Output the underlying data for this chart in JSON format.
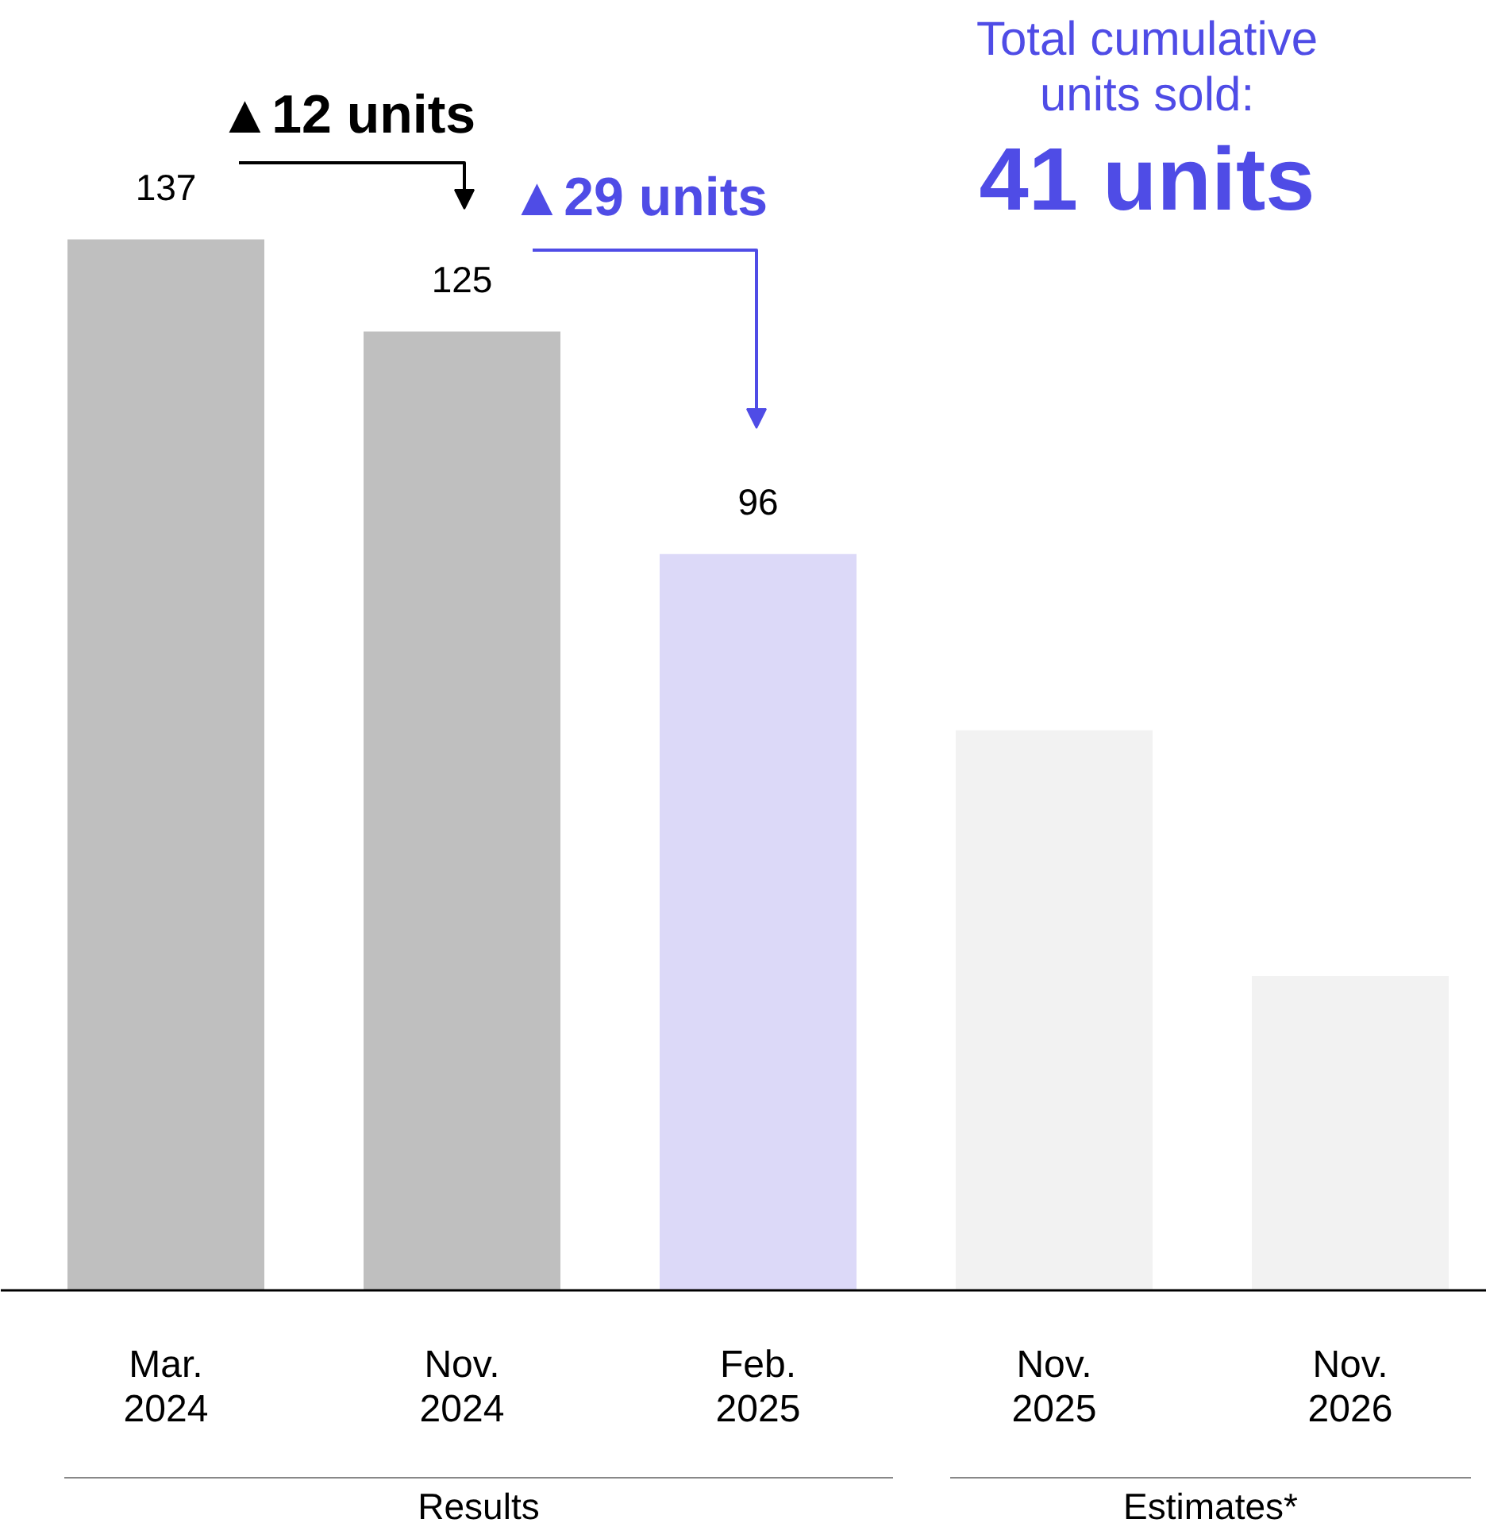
{
  "chart_data": {
    "type": "bar",
    "categories": [
      "Mar.\n2024",
      "Nov.\n2024",
      "Feb.\n2025",
      "Nov.\n2025",
      "Nov.\n2026"
    ],
    "values": [
      137,
      125,
      96,
      73,
      41
    ],
    "colors": [
      "#bfbfbf",
      "#bfbfbf",
      "#dcd9f8",
      "#f2f2f2",
      "#f2f2f2"
    ],
    "value_labels": [
      "137",
      "125",
      "96",
      null,
      null
    ],
    "grid": false,
    "annotations": [
      "▲12 units",
      "▲29 units",
      "Total cumulative\nunits sold:",
      "41 units",
      "Results",
      "Estimates*"
    ]
  }
}
